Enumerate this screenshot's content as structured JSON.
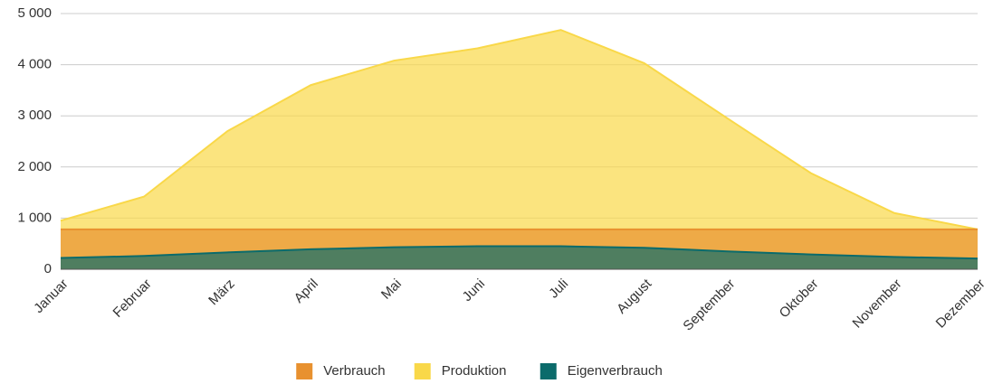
{
  "chart_data": {
    "type": "area",
    "categories": [
      "Januar",
      "Februar",
      "März",
      "April",
      "Mai",
      "Juni",
      "Juli",
      "August",
      "September",
      "Oktober",
      "November",
      "Dezember"
    ],
    "series": [
      {
        "name": "Verbrauch",
        "color": "#e8912f",
        "values": [
          780,
          780,
          780,
          780,
          780,
          780,
          780,
          780,
          780,
          780,
          780,
          780
        ]
      },
      {
        "name": "Produktion",
        "color": "#f9d849",
        "values": [
          950,
          1420,
          2700,
          3600,
          4080,
          4320,
          4680,
          4030,
          2950,
          1880,
          1100,
          780
        ]
      },
      {
        "name": "Eigenverbrauch",
        "color": "#0b6b6b",
        "values": [
          220,
          260,
          330,
          390,
          430,
          450,
          450,
          420,
          350,
          290,
          240,
          210
        ]
      }
    ],
    "ylim": [
      0,
      5000
    ],
    "yticks": [
      {
        "value": 0,
        "label": "0"
      },
      {
        "value": 1000,
        "label": "1 000"
      },
      {
        "value": 2000,
        "label": "2 000"
      },
      {
        "value": 3000,
        "label": "3 000"
      },
      {
        "value": 4000,
        "label": "4 000"
      },
      {
        "value": 5000,
        "label": "5 000"
      }
    ],
    "grid": true,
    "legend": "bottom"
  }
}
